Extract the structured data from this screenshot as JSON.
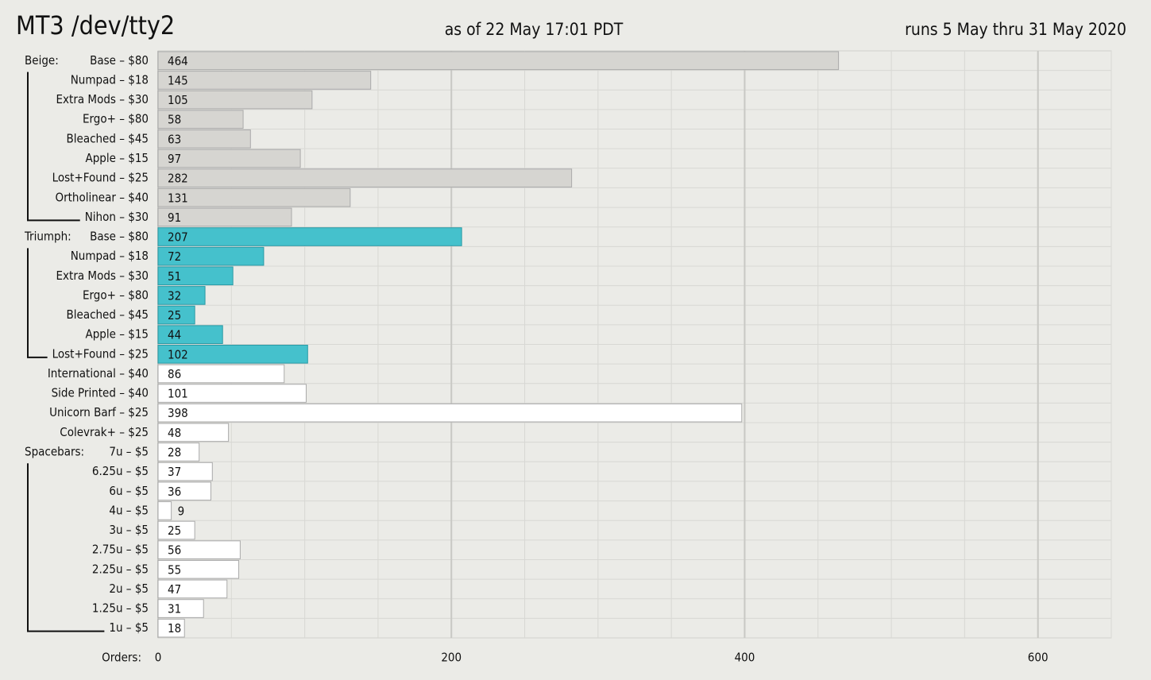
{
  "chart_data": {
    "type": "bar",
    "orientation": "horizontal",
    "title": "MT3  /dev/tty2",
    "subtitle": "as of 22 May 17:01 PDT",
    "annotation": "runs 5 May thru 31 May 2020",
    "xlabel": "Orders:",
    "categories": [
      "Base – $80",
      "Numpad – $18",
      "Extra Mods – $30",
      "Ergo+ – $80",
      "Bleached – $45",
      "Apple – $15",
      "Lost+Found – $25",
      "Ortholinear – $40",
      "Nihon – $30",
      "Base – $80",
      "Numpad – $18",
      "Extra Mods – $30",
      "Ergo+ – $80",
      "Bleached – $45",
      "Apple – $15",
      "Lost+Found – $25",
      "International – $40",
      "Side Printed – $40",
      "Unicorn Barf – $25",
      "Colevrak+ – $25",
      "7u – $5",
      "6.25u – $5",
      "6u – $5",
      "4u – $5",
      "3u – $5",
      "2.75u – $5",
      "2.25u – $5",
      "2u – $5",
      "1.25u – $5",
      "1u – $5"
    ],
    "category_groups": [
      "Beige:",
      null,
      null,
      null,
      null,
      null,
      null,
      null,
      null,
      "Triumph:",
      null,
      null,
      null,
      null,
      null,
      null,
      null,
      null,
      null,
      null,
      "Spacebars:",
      null,
      null,
      null,
      null,
      null,
      null,
      null,
      null,
      null
    ],
    "values": [
      464,
      145,
      105,
      58,
      63,
      97,
      282,
      131,
      91,
      207,
      72,
      51,
      32,
      25,
      44,
      102,
      86,
      101,
      398,
      48,
      28,
      37,
      36,
      9,
      25,
      56,
      55,
      47,
      31,
      18
    ],
    "colors": [
      "#d6d5d1",
      "#d6d5d1",
      "#d6d5d1",
      "#d6d5d1",
      "#d6d5d1",
      "#d6d5d1",
      "#d6d5d1",
      "#d6d5d1",
      "#d6d5d1",
      "#45c1cc",
      "#45c1cc",
      "#45c1cc",
      "#45c1cc",
      "#45c1cc",
      "#45c1cc",
      "#45c1cc",
      "#ffffff",
      "#ffffff",
      "#ffffff",
      "#ffffff",
      "#ffffff",
      "#ffffff",
      "#ffffff",
      "#ffffff",
      "#ffffff",
      "#ffffff",
      "#ffffff",
      "#ffffff",
      "#ffffff",
      "#ffffff"
    ],
    "xlim": [
      0,
      650
    ],
    "xticks": [
      0,
      200,
      400,
      600
    ],
    "xminorticks": [
      50,
      100,
      150,
      250,
      300,
      350,
      450,
      500,
      550,
      650
    ],
    "grid": true
  }
}
